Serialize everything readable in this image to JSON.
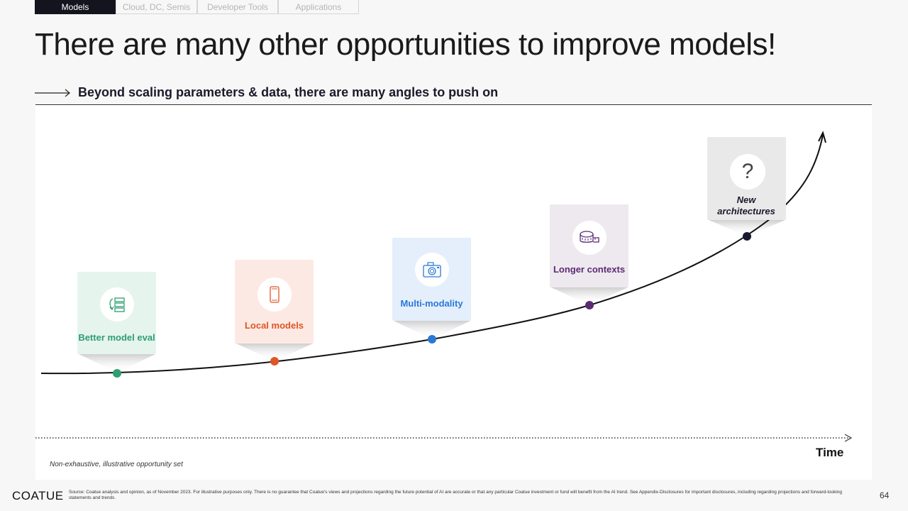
{
  "tabs": [
    {
      "label": "Models",
      "active": true
    },
    {
      "label": "Cloud, DC, Semis",
      "active": false
    },
    {
      "label": "Developer Tools",
      "active": false
    },
    {
      "label": "Applications",
      "active": false
    }
  ],
  "title": "There are many other opportunities to improve models!",
  "subtitle": "Beyond scaling parameters & data, there are many angles to push on",
  "cards": [
    {
      "label": "Better model eval",
      "color": "#2e9e73",
      "bg": "#e6f4ee",
      "icon": "eval-list-icon"
    },
    {
      "label": "Local models",
      "color": "#e05526",
      "bg": "#fde9e3",
      "icon": "phone-icon"
    },
    {
      "label": "Multi-modality",
      "color": "#2a78d6",
      "bg": "#e4effb",
      "icon": "camera-icon"
    },
    {
      "label": "Longer contexts",
      "color": "#5c2a73",
      "bg": "#eee9ef",
      "icon": "tape-measure-icon"
    },
    {
      "label": "New architectures",
      "color": "#1a1a2e",
      "bg": "#e9e9e9",
      "icon": "question-icon"
    }
  ],
  "axis": {
    "x_label": "Time"
  },
  "note": "Non-exhaustive, illustrative opportunity set",
  "footer": {
    "logo": "COATUE",
    "source": "Source: Coatue analysis and opinion, as of November 2023. For illustrative purposes only. There is no guarantee that Coatue's views and projections regarding the future potential of AI are accurate or that any particular Coatue investment or fund will benefit from the AI trend. See Appendix-Disclosures for important disclosures, including regarding projections and forward-looking statements and trends.",
    "page_number": "64"
  }
}
